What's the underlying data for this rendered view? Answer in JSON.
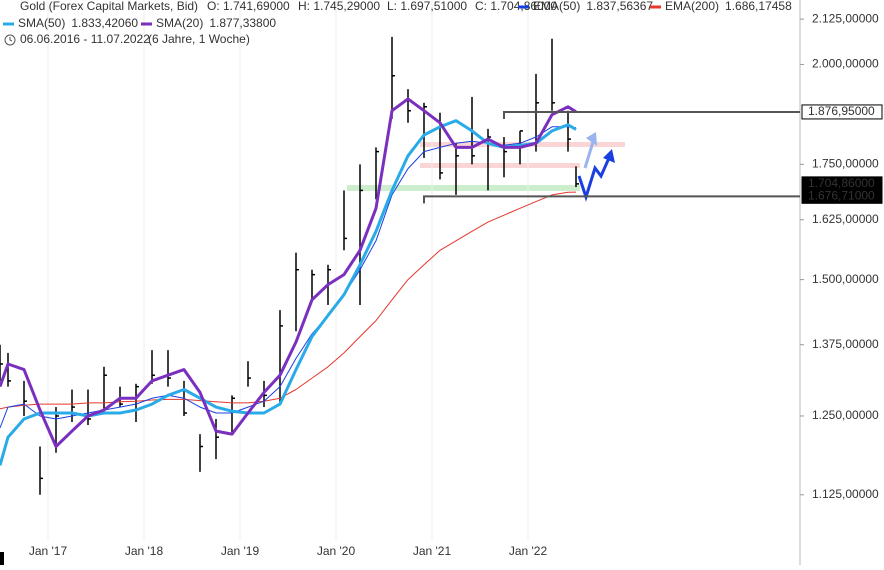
{
  "chart_data": {
    "type": "ohlc",
    "header": {
      "title": "Gold (Forex Capital Markets, Bid)",
      "open_label": "O: 1.741,69000",
      "high_label": "H: 1.745,29000",
      "low_label": "L: 1.697,51000",
      "close_label": "C: 1.704,86000",
      "range": "06.06.2016 - 11.07.2022",
      "span": "(6 Jahre, 1 Woche)"
    },
    "log_scale": true,
    "xgrid": true,
    "xlim": [
      "2016-07",
      "2024-11"
    ],
    "ylim": [
      1059,
      2180
    ],
    "yticks": [
      {
        "value": 2125,
        "label": "2.125,00000"
      },
      {
        "value": 2000,
        "label": "2.000,00000"
      },
      {
        "value": 1750,
        "label": "1.750,00000"
      },
      {
        "value": 1625,
        "label": "1.625,00000"
      },
      {
        "value": 1500,
        "label": "1.500,00000"
      },
      {
        "value": 1375,
        "label": "1.375,00000"
      },
      {
        "value": 1250,
        "label": "1.250,00000"
      },
      {
        "value": 1125,
        "label": "1.125,00000"
      }
    ],
    "xticks": [
      {
        "value": "2017-01",
        "label": "Jan '17"
      },
      {
        "value": "2018-01",
        "label": "Jan '18"
      },
      {
        "value": "2019-01",
        "label": "Jan '19"
      },
      {
        "value": "2020-01",
        "label": "Jan '20"
      },
      {
        "value": "2021-01",
        "label": "Jan '21"
      },
      {
        "value": "2022-01",
        "label": "Jan '22"
      }
    ],
    "x": [
      "2016-07",
      "2016-08",
      "2016-10",
      "2016-12",
      "2017-02",
      "2017-04",
      "2017-06",
      "2017-08",
      "2017-10",
      "2017-12",
      "2018-02",
      "2018-04",
      "2018-06",
      "2018-08",
      "2018-10",
      "2018-12",
      "2019-02",
      "2019-04",
      "2019-06",
      "2019-08",
      "2019-10",
      "2019-12",
      "2020-02",
      "2020-04",
      "2020-06",
      "2020-08",
      "2020-10",
      "2020-12",
      "2021-02",
      "2021-04",
      "2021-06",
      "2021-08",
      "2021-10",
      "2021-12",
      "2022-02",
      "2022-04",
      "2022-06",
      "2022-07"
    ],
    "ohlc": {
      "color": "#000000",
      "high": [
        1375,
        1360,
        1310,
        1200,
        1265,
        1295,
        1295,
        1335,
        1300,
        1305,
        1365,
        1365,
        1310,
        1220,
        1245,
        1285,
        1345,
        1310,
        1440,
        1555,
        1520,
        1530,
        1690,
        1750,
        1790,
        2075,
        1935,
        1900,
        1875,
        1800,
        1915,
        1835,
        1815,
        1830,
        1975,
        2070,
        1880,
        1745.29
      ],
      "low": [
        1310,
        1300,
        1250,
        1125,
        1190,
        1240,
        1235,
        1260,
        1265,
        1240,
        1305,
        1300,
        1250,
        1160,
        1180,
        1220,
        1300,
        1265,
        1270,
        1400,
        1460,
        1450,
        1560,
        1450,
        1670,
        1860,
        1850,
        1765,
        1715,
        1680,
        1750,
        1690,
        1720,
        1750,
        1780,
        1880,
        1780,
        1697.51
      ],
      "close": [
        1340,
        1310,
        1275,
        1150,
        1250,
        1265,
        1245,
        1320,
        1270,
        1300,
        1320,
        1315,
        1255,
        1200,
        1215,
        1280,
        1315,
        1285,
        1410,
        1520,
        1510,
        1520,
        1585,
        1690,
        1780,
        1970,
        1880,
        1890,
        1730,
        1770,
        1770,
        1815,
        1780,
        1830,
        1900,
        1900,
        1810,
        1704.86
      ]
    },
    "series": [
      {
        "name": "EMA(50)",
        "value_label": "1.837,56367",
        "color": "#1a3fe0",
        "width": 1,
        "values": [
          1230,
          1265,
          1270,
          1250,
          1245,
          1250,
          1255,
          1260,
          1265,
          1270,
          1280,
          1285,
          1280,
          1265,
          1255,
          1255,
          1265,
          1275,
          1300,
          1350,
          1395,
          1430,
          1470,
          1520,
          1580,
          1680,
          1740,
          1780,
          1790,
          1800,
          1805,
          1800,
          1795,
          1800,
          1815,
          1840,
          1840,
          1837.56
        ]
      },
      {
        "name": "EMA(200)",
        "value_label": "1.686,17458",
        "color": "#e5372c",
        "width": 1,
        "values": [
          1262,
          1265,
          1268,
          1270,
          1270,
          1270,
          1272,
          1272,
          1274,
          1275,
          1277,
          1278,
          1278,
          1276,
          1274,
          1272,
          1272,
          1275,
          1280,
          1295,
          1315,
          1335,
          1360,
          1390,
          1420,
          1460,
          1500,
          1530,
          1560,
          1580,
          1600,
          1620,
          1635,
          1650,
          1665,
          1680,
          1686,
          1686.17
        ]
      },
      {
        "name": "SMA(50)",
        "value_label": "1.833,42060",
        "color": "#29abe8",
        "width": 3,
        "values": [
          1170,
          1215,
          1245,
          1255,
          1255,
          1255,
          1250,
          1255,
          1255,
          1260,
          1270,
          1285,
          1295,
          1280,
          1265,
          1258,
          1255,
          1255,
          1270,
          1330,
          1390,
          1430,
          1470,
          1530,
          1600,
          1690,
          1770,
          1820,
          1840,
          1855,
          1830,
          1800,
          1790,
          1795,
          1800,
          1830,
          1845,
          1833.42
        ]
      },
      {
        "name": "SMA(20)",
        "value_label": "1.877,33800",
        "color": "#7b2fbe",
        "width": 3,
        "values": [
          1300,
          1340,
          1330,
          1260,
          1200,
          1225,
          1250,
          1260,
          1280,
          1280,
          1310,
          1320,
          1330,
          1290,
          1225,
          1220,
          1255,
          1290,
          1320,
          1380,
          1460,
          1490,
          1510,
          1560,
          1650,
          1880,
          1910,
          1880,
          1850,
          1790,
          1790,
          1810,
          1790,
          1790,
          1800,
          1870,
          1890,
          1877.34
        ]
      }
    ],
    "levels": [
      {
        "value": 1876.95,
        "label": "1.876,95000",
        "start": "2021-10",
        "style": "outline"
      },
      {
        "value": 1704.86,
        "label": "1.704,86000",
        "style": "filled"
      },
      {
        "value": 1676.71,
        "label": "1.676,71000",
        "start": "2020-12",
        "style": "filled"
      }
    ]
  }
}
